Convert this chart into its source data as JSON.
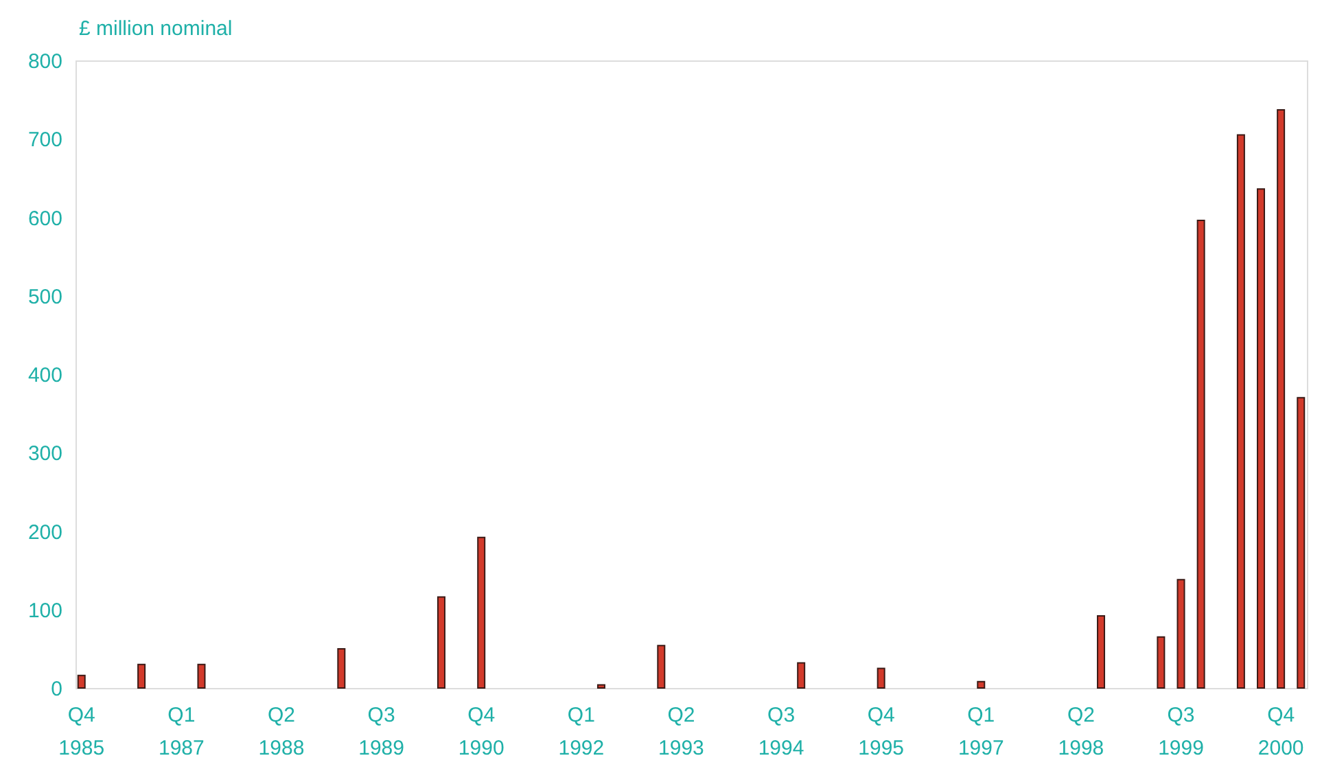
{
  "chart_data": {
    "type": "bar",
    "ylabel": "£ million nominal",
    "categories": [
      "Q4 1985",
      null,
      null,
      null,
      null,
      "Q1 1987",
      null,
      null,
      null,
      null,
      "Q2 1988",
      null,
      null,
      null,
      null,
      "Q3 1989",
      null,
      null,
      null,
      null,
      "Q4 1990",
      null,
      null,
      null,
      null,
      "Q1 1992",
      null,
      null,
      null,
      null,
      "Q2 1993",
      null,
      null,
      null,
      null,
      "Q3 1994",
      null,
      null,
      null,
      null,
      "Q4 1995",
      null,
      null,
      null,
      null,
      "Q1 1997",
      null,
      null,
      null,
      null,
      "Q2 1998",
      null,
      null,
      null,
      null,
      "Q3 1999",
      null,
      null,
      null,
      null,
      "Q4 2000",
      null
    ],
    "values": [
      16,
      0,
      0,
      30,
      0,
      0,
      30,
      0,
      0,
      0,
      0,
      0,
      0,
      50,
      0,
      0,
      0,
      0,
      116,
      0,
      192,
      0,
      0,
      0,
      0,
      0,
      4,
      0,
      0,
      54,
      0,
      0,
      0,
      0,
      0,
      0,
      32,
      0,
      0,
      0,
      25,
      0,
      0,
      0,
      0,
      8,
      0,
      0,
      0,
      0,
      0,
      92,
      0,
      0,
      65,
      138,
      596,
      0,
      705,
      636,
      737,
      370
    ],
    "color": "#d23a2b",
    "ylim": [
      0,
      800
    ],
    "yticks": [
      0,
      100,
      200,
      300,
      400,
      500,
      600,
      700,
      800
    ],
    "grid": false
  }
}
